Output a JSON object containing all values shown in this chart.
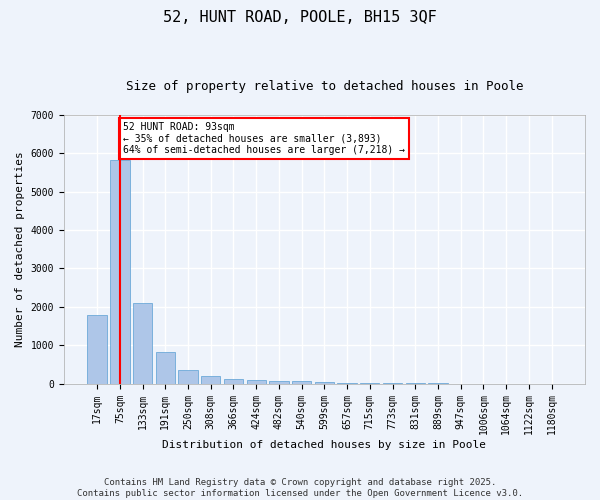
{
  "title_line1": "52, HUNT ROAD, POOLE, BH15 3QF",
  "title_line2": "Size of property relative to detached houses in Poole",
  "xlabel": "Distribution of detached houses by size in Poole",
  "ylabel": "Number of detached properties",
  "categories": [
    "17sqm",
    "75sqm",
    "133sqm",
    "191sqm",
    "250sqm",
    "308sqm",
    "366sqm",
    "424sqm",
    "482sqm",
    "540sqm",
    "599sqm",
    "657sqm",
    "715sqm",
    "773sqm",
    "831sqm",
    "889sqm",
    "947sqm",
    "1006sqm",
    "1064sqm",
    "1122sqm",
    "1180sqm"
  ],
  "values": [
    1780,
    5820,
    2090,
    820,
    360,
    210,
    130,
    100,
    80,
    55,
    35,
    20,
    12,
    8,
    5,
    3,
    2,
    1,
    1,
    0,
    0
  ],
  "bar_color": "#aec6e8",
  "bar_edge_color": "#5a9fd4",
  "vline_x": 1,
  "vline_color": "red",
  "ylim": [
    0,
    7000
  ],
  "yticks": [
    0,
    1000,
    2000,
    3000,
    4000,
    5000,
    6000,
    7000
  ],
  "annotation_text": "52 HUNT ROAD: 93sqm\n← 35% of detached houses are smaller (3,893)\n64% of semi-detached houses are larger (7,218) →",
  "annotation_box_color": "red",
  "footer_line1": "Contains HM Land Registry data © Crown copyright and database right 2025.",
  "footer_line2": "Contains public sector information licensed under the Open Government Licence v3.0.",
  "bg_color": "#eef3fb",
  "plot_bg_color": "#eef3fb",
  "grid_color": "#ffffff",
  "title_fontsize": 11,
  "subtitle_fontsize": 9,
  "axis_label_fontsize": 8,
  "tick_fontsize": 7,
  "annotation_fontsize": 7,
  "footer_fontsize": 6.5
}
